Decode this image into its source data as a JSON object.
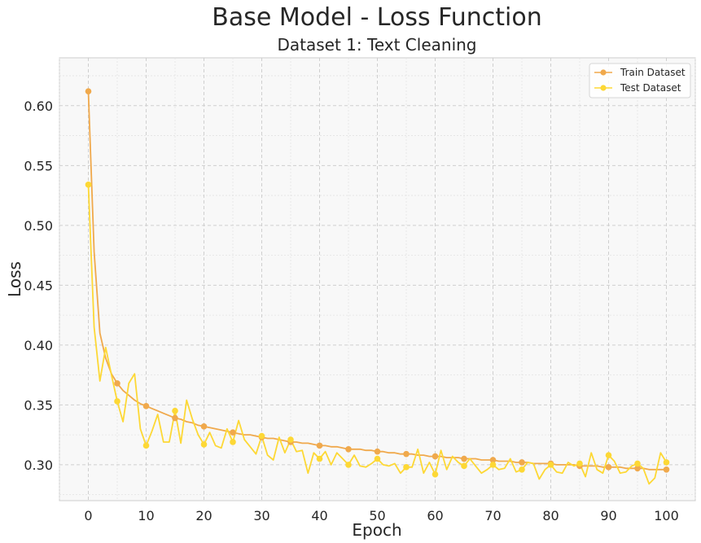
{
  "chart_data": {
    "type": "line",
    "title": "Base Model - Loss Function",
    "subtitle": "Dataset 1: Text Cleaning",
    "xlabel": "Epoch",
    "ylabel": "Loss",
    "xlim": [
      -5,
      105
    ],
    "ylim": [
      0.27,
      0.64
    ],
    "xticks": [
      0,
      10,
      20,
      30,
      40,
      50,
      60,
      70,
      80,
      90,
      100
    ],
    "yticks": [
      0.3,
      0.35,
      0.4,
      0.45,
      0.5,
      0.55,
      0.6
    ],
    "ytick_labels": [
      "0.30",
      "0.35",
      "0.40",
      "0.45",
      "0.50",
      "0.55",
      "0.60"
    ],
    "grid": true,
    "legend_position": "top-right",
    "marker_every": 5,
    "series": [
      {
        "name": "Train Dataset",
        "color": "#f0a94c",
        "x": [
          0,
          1,
          2,
          3,
          4,
          5,
          6,
          7,
          8,
          9,
          10,
          11,
          12,
          13,
          14,
          15,
          16,
          17,
          18,
          19,
          20,
          21,
          22,
          23,
          24,
          25,
          26,
          27,
          28,
          29,
          30,
          31,
          32,
          33,
          34,
          35,
          36,
          37,
          38,
          39,
          40,
          41,
          42,
          43,
          44,
          45,
          46,
          47,
          48,
          49,
          50,
          51,
          52,
          53,
          54,
          55,
          56,
          57,
          58,
          59,
          60,
          61,
          62,
          63,
          64,
          65,
          66,
          67,
          68,
          69,
          70,
          71,
          72,
          73,
          74,
          75,
          76,
          77,
          78,
          79,
          80,
          81,
          82,
          83,
          84,
          85,
          86,
          87,
          88,
          89,
          90,
          91,
          92,
          93,
          94,
          95,
          96,
          97,
          98,
          99,
          100
        ],
        "values": [
          0.612,
          0.478,
          0.41,
          0.389,
          0.376,
          0.368,
          0.362,
          0.358,
          0.354,
          0.351,
          0.349,
          0.347,
          0.345,
          0.343,
          0.341,
          0.339,
          0.338,
          0.336,
          0.335,
          0.333,
          0.332,
          0.331,
          0.33,
          0.329,
          0.328,
          0.327,
          0.326,
          0.325,
          0.325,
          0.324,
          0.323,
          0.322,
          0.322,
          0.321,
          0.32,
          0.319,
          0.319,
          0.318,
          0.318,
          0.317,
          0.316,
          0.316,
          0.315,
          0.315,
          0.314,
          0.313,
          0.313,
          0.313,
          0.312,
          0.312,
          0.311,
          0.311,
          0.31,
          0.31,
          0.309,
          0.309,
          0.309,
          0.308,
          0.308,
          0.307,
          0.307,
          0.307,
          0.306,
          0.306,
          0.306,
          0.305,
          0.305,
          0.305,
          0.304,
          0.304,
          0.304,
          0.303,
          0.303,
          0.303,
          0.302,
          0.302,
          0.302,
          0.301,
          0.301,
          0.301,
          0.301,
          0.3,
          0.3,
          0.3,
          0.3,
          0.299,
          0.299,
          0.299,
          0.299,
          0.298,
          0.298,
          0.298,
          0.298,
          0.297,
          0.297,
          0.297,
          0.297,
          0.296,
          0.296,
          0.296,
          0.296
        ]
      },
      {
        "name": "Test Dataset",
        "color": "#fdd835",
        "x": [
          0,
          1,
          2,
          3,
          4,
          5,
          6,
          7,
          8,
          9,
          10,
          11,
          12,
          13,
          14,
          15,
          16,
          17,
          18,
          19,
          20,
          21,
          22,
          23,
          24,
          25,
          26,
          27,
          28,
          29,
          30,
          31,
          32,
          33,
          34,
          35,
          36,
          37,
          38,
          39,
          40,
          41,
          42,
          43,
          44,
          45,
          46,
          47,
          48,
          49,
          50,
          51,
          52,
          53,
          54,
          55,
          56,
          57,
          58,
          59,
          60,
          61,
          62,
          63,
          64,
          65,
          66,
          67,
          68,
          69,
          70,
          71,
          72,
          73,
          74,
          75,
          76,
          77,
          78,
          79,
          80,
          81,
          82,
          83,
          84,
          85,
          86,
          87,
          88,
          89,
          90,
          91,
          92,
          93,
          94,
          95,
          96,
          97,
          98,
          99,
          100
        ],
        "values": [
          0.534,
          0.415,
          0.37,
          0.398,
          0.375,
          0.353,
          0.336,
          0.368,
          0.376,
          0.33,
          0.316,
          0.328,
          0.342,
          0.319,
          0.319,
          0.345,
          0.318,
          0.354,
          0.338,
          0.325,
          0.317,
          0.327,
          0.316,
          0.314,
          0.33,
          0.319,
          0.337,
          0.321,
          0.315,
          0.309,
          0.324,
          0.308,
          0.304,
          0.323,
          0.31,
          0.321,
          0.311,
          0.312,
          0.293,
          0.31,
          0.305,
          0.311,
          0.3,
          0.31,
          0.305,
          0.3,
          0.308,
          0.299,
          0.298,
          0.301,
          0.305,
          0.3,
          0.299,
          0.301,
          0.293,
          0.298,
          0.298,
          0.313,
          0.293,
          0.302,
          0.292,
          0.312,
          0.296,
          0.307,
          0.302,
          0.299,
          0.305,
          0.299,
          0.293,
          0.296,
          0.3,
          0.296,
          0.297,
          0.305,
          0.294,
          0.296,
          0.302,
          0.301,
          0.288,
          0.296,
          0.3,
          0.294,
          0.293,
          0.302,
          0.299,
          0.301,
          0.29,
          0.31,
          0.296,
          0.293,
          0.308,
          0.303,
          0.293,
          0.294,
          0.299,
          0.301,
          0.297,
          0.284,
          0.289,
          0.31,
          0.302
        ]
      }
    ]
  }
}
